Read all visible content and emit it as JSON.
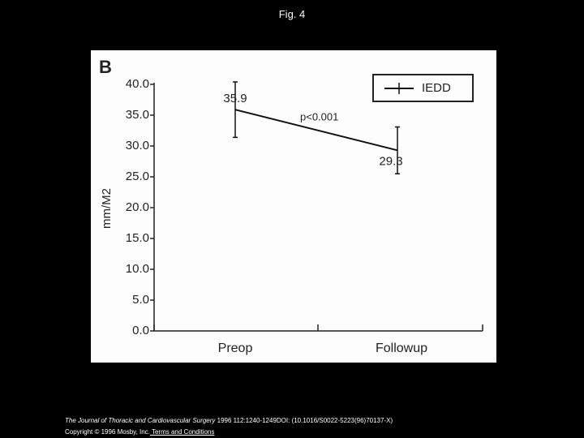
{
  "page": {
    "title": "Fig. 4",
    "footer": {
      "journal": "The Journal of Thoracic and Cardiovascular Surgery",
      "citation": " 1996 112:1240-1249DOI: (10.1016/S0022-5223(96)70137-X)",
      "copyright": "Copyright © 1996 Mosby, Inc.",
      "link": " Terms and Conditions"
    }
  },
  "chart_data": {
    "type": "line",
    "panel_label": "B",
    "y_label": "mm/M2",
    "annotation": "p<0.001",
    "categories": [
      "Preop",
      "Followup"
    ],
    "series": [
      {
        "name": "IEDD",
        "color": "#111111",
        "values": [
          35.9,
          29.3
        ],
        "errors": [
          4.5,
          3.8
        ]
      }
    ],
    "ylim": [
      0,
      40
    ],
    "yticks": [
      {
        "value": 0,
        "label": "0.0"
      },
      {
        "value": 5,
        "label": "5.0"
      },
      {
        "value": 10,
        "label": "10.0"
      },
      {
        "value": 15,
        "label": "15.0"
      },
      {
        "value": 20,
        "label": "20.0"
      },
      {
        "value": 25,
        "label": "25.0"
      },
      {
        "value": 30,
        "label": "30.0"
      },
      {
        "value": 35,
        "label": "35.0"
      },
      {
        "value": 40,
        "label": "40.0"
      }
    ],
    "legend_position": "upper right",
    "grid": false
  }
}
